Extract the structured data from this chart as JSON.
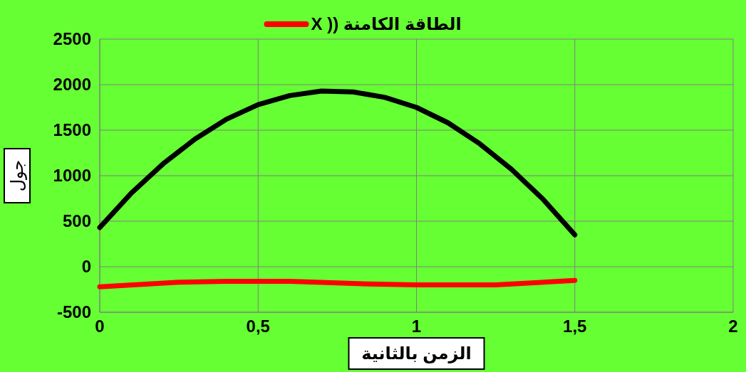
{
  "chart_data": {
    "type": "line",
    "xlabel": "الزمن بالثانية",
    "ylabel": "جول",
    "xlim": [
      0,
      2
    ],
    "xticks": [
      0,
      {
        "value": 0.5,
        "label": "0,5"
      },
      1,
      {
        "value": 1.5,
        "label": "1,5"
      },
      2
    ],
    "ylim": [
      -500,
      2500
    ],
    "yticks": [
      -500,
      0,
      500,
      1000,
      1500,
      2000,
      2500
    ],
    "grid": true,
    "legend": "top",
    "marker": "none",
    "line_style": "solid",
    "series": [
      {
        "color": "#000000",
        "x": [
          0,
          0.1,
          0.2,
          0.3,
          0.4,
          0.5,
          0.6,
          0.7,
          0.8,
          0.9,
          1.0,
          1.1,
          1.2,
          1.3,
          1.4,
          1.5
        ],
        "values": [
          430,
          810,
          1130,
          1400,
          1620,
          1780,
          1880,
          1930,
          1920,
          1860,
          1750,
          1580,
          1350,
          1070,
          740,
          350
        ]
      },
      {
        "name": "الطاقة الكامنة (( X",
        "color": "#ff0000",
        "x": [
          0,
          0.25,
          0.4,
          0.6,
          0.85,
          1.0,
          1.25,
          1.5
        ],
        "values": [
          -220,
          -170,
          -160,
          -160,
          -190,
          -200,
          -200,
          -150
        ]
      }
    ]
  }
}
